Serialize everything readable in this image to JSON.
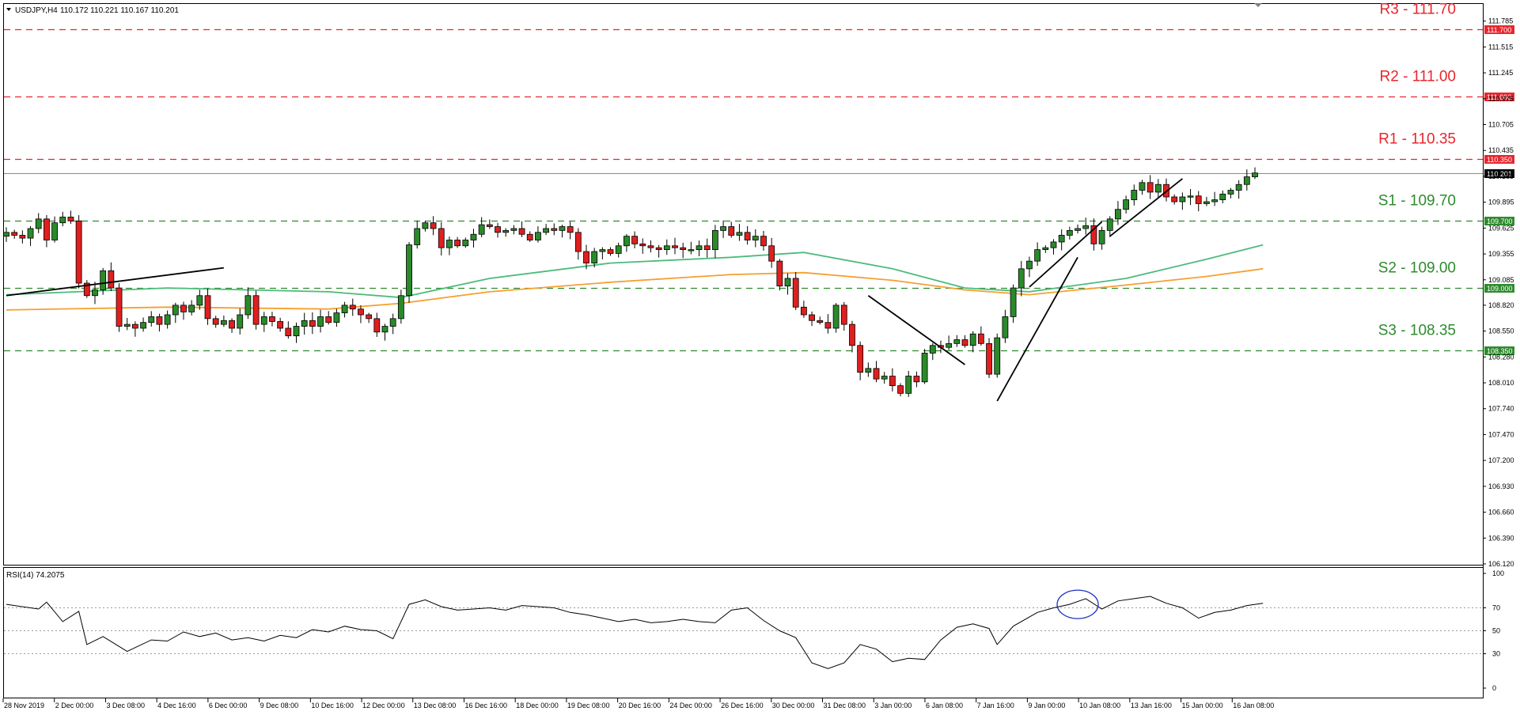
{
  "header": {
    "symbol": "USDJPY,H4",
    "ohlc": "110.172 110.221 110.167 110.201"
  },
  "rsi_header": {
    "label": "RSI(14) 74.2075"
  },
  "colors": {
    "resistance": "#e8262d",
    "support": "#2e8b2e",
    "bull": "#2a8a2a",
    "bear": "#e01f1f",
    "ma_fast": "#4cbb7c",
    "ma_slow": "#f5a030",
    "rsi_circle": "#2030c0"
  },
  "chart_data": [
    {
      "type": "candlestick",
      "symbol": "USDJPY",
      "timeframe": "H4",
      "ylim": [
        106.12,
        111.84
      ],
      "yticks": [
        "111.785",
        "111.515",
        "111.245",
        "110.975",
        "110.705",
        "110.435",
        "110.165",
        "109.895",
        "109.625",
        "109.355",
        "109.085",
        "108.820",
        "108.550",
        "108.280",
        "108.010",
        "107.740",
        "107.470",
        "107.200",
        "106.930",
        "106.660",
        "106.390",
        "106.120"
      ],
      "xticks": [
        "28 Nov 2019",
        "2 Dec 00:00",
        "3 Dec 08:00",
        "4 Dec 16:00",
        "6 Dec 00:00",
        "9 Dec 08:00",
        "10 Dec 16:00",
        "12 Dec 00:00",
        "13 Dec 08:00",
        "16 Dec 16:00",
        "18 Dec 00:00",
        "19 Dec 08:00",
        "20 Dec 16:00",
        "24 Dec 00:00",
        "26 Dec 16:00",
        "30 Dec 00:00",
        "31 Dec 08:00",
        "3 Jan 00:00",
        "6 Jan 08:00",
        "7 Jan 16:00",
        "9 Jan 00:00",
        "10 Jan 08:00",
        "13 Jan 16:00",
        "15 Jan 00:00",
        "16 Jan 08:00"
      ],
      "levels": [
        {
          "name": "R3",
          "label": "R3 - 111.70",
          "tag": "111.700",
          "value": 111.7,
          "kind": "resistance"
        },
        {
          "name": "R2",
          "label": "R2 - 111.00",
          "tag": "111.000",
          "value": 111.0,
          "kind": "resistance"
        },
        {
          "name": "R1",
          "label": "R1 - 110.35",
          "tag": "110.350",
          "value": 110.35,
          "kind": "resistance"
        },
        {
          "name": "S1",
          "label": "S1 - 109.70",
          "tag": "109.700",
          "value": 109.7,
          "kind": "support"
        },
        {
          "name": "S2",
          "label": "S2 - 109.00",
          "tag": "109.000",
          "value": 109.0,
          "kind": "support"
        },
        {
          "name": "S3",
          "label": "S3 - 108.35",
          "tag": "108.350",
          "value": 108.35,
          "kind": "support"
        }
      ],
      "last_price": {
        "tag": "110.201",
        "value": 110.201
      },
      "closes": [
        109.58,
        109.55,
        109.52,
        109.62,
        109.72,
        109.5,
        109.68,
        109.74,
        109.7,
        109.05,
        108.92,
        108.98,
        109.18,
        109.0,
        108.6,
        108.62,
        108.58,
        108.64,
        108.7,
        108.62,
        108.72,
        108.82,
        108.75,
        108.82,
        108.92,
        108.68,
        108.62,
        108.66,
        108.58,
        108.72,
        108.92,
        108.62,
        108.7,
        108.65,
        108.58,
        108.5,
        108.6,
        108.66,
        108.6,
        108.7,
        108.64,
        108.74,
        108.82,
        108.78,
        108.72,
        108.68,
        108.54,
        108.6,
        108.68,
        108.92,
        109.45,
        109.62,
        109.68,
        109.62,
        109.42,
        109.5,
        109.44,
        109.5,
        109.56,
        109.66,
        109.64,
        109.58,
        109.6,
        109.62,
        109.56,
        109.5,
        109.58,
        109.62,
        109.6,
        109.64,
        109.58,
        109.38,
        109.26,
        109.38,
        109.4,
        109.36,
        109.44,
        109.54,
        109.46,
        109.44,
        109.42,
        109.4,
        109.44,
        109.42,
        109.4,
        109.4,
        109.44,
        109.4,
        109.6,
        109.64,
        109.55,
        109.58,
        109.5,
        109.54,
        109.44,
        109.28,
        109.02,
        109.1,
        108.8,
        108.72,
        108.66,
        108.64,
        108.58,
        108.82,
        108.62,
        108.4,
        108.12,
        108.16,
        108.05,
        108.08,
        107.98,
        107.9,
        108.08,
        108.02,
        108.32,
        108.4,
        108.38,
        108.42,
        108.46,
        108.4,
        108.52,
        108.42,
        108.1,
        108.48,
        108.7,
        109.0,
        109.2,
        109.28,
        109.4,
        109.42,
        109.48,
        109.55,
        109.6,
        109.62,
        109.65,
        109.46,
        109.6,
        109.72,
        109.82,
        109.92,
        110.02,
        110.1,
        110.0,
        110.08,
        109.95,
        109.9,
        109.95,
        109.96,
        109.88,
        109.9,
        109.92,
        109.98,
        110.02,
        110.08,
        110.16,
        110.2
      ],
      "moving_averages": [
        {
          "role": "fast",
          "points": [
            [
              0,
              108.93
            ],
            [
              20,
              109.0
            ],
            [
              40,
              108.96
            ],
            [
              49,
              108.9
            ],
            [
              60,
              109.1
            ],
            [
              75,
              109.26
            ],
            [
              90,
              109.32
            ],
            [
              99,
              109.37
            ],
            [
              110,
              109.2
            ],
            [
              119,
              109.0
            ],
            [
              127,
              108.96
            ],
            [
              139,
              109.1
            ],
            [
              149,
              109.3
            ],
            [
              156,
              109.45
            ]
          ]
        },
        {
          "role": "slow",
          "points": [
            [
              0,
              108.77
            ],
            [
              20,
              108.8
            ],
            [
              40,
              108.78
            ],
            [
              49,
              108.84
            ],
            [
              60,
              108.96
            ],
            [
              75,
              109.06
            ],
            [
              90,
              109.14
            ],
            [
              99,
              109.16
            ],
            [
              110,
              109.08
            ],
            [
              119,
              108.98
            ],
            [
              127,
              108.93
            ],
            [
              139,
              109.03
            ],
            [
              149,
              109.12
            ],
            [
              156,
              109.2
            ]
          ]
        }
      ],
      "trendlines": [
        [
          [
            0,
            108.92
          ],
          [
            27,
            109.21
          ]
        ],
        [
          [
            107,
            108.92
          ],
          [
            119,
            108.2
          ]
        ],
        [
          [
            123,
            107.82
          ],
          [
            133,
            109.32
          ]
        ],
        [
          [
            127,
            109.01
          ],
          [
            136,
            109.69
          ]
        ],
        [
          [
            137,
            109.54
          ],
          [
            146,
            110.14
          ]
        ]
      ]
    },
    {
      "type": "line",
      "indicator": "RSI(14)",
      "ylim": [
        0,
        100
      ],
      "yticks": [
        "100",
        "70",
        "50",
        "30",
        "0"
      ],
      "guide_levels": [
        70,
        50,
        30
      ],
      "points": [
        [
          0,
          73
        ],
        [
          4,
          69
        ],
        [
          5,
          75
        ],
        [
          7,
          58
        ],
        [
          9,
          67
        ],
        [
          10,
          38
        ],
        [
          12,
          45
        ],
        [
          15,
          32
        ],
        [
          18,
          42
        ],
        [
          20,
          41
        ],
        [
          22,
          49
        ],
        [
          24,
          45
        ],
        [
          26,
          48
        ],
        [
          28,
          42
        ],
        [
          30,
          44
        ],
        [
          32,
          41
        ],
        [
          34,
          46
        ],
        [
          36,
          44
        ],
        [
          38,
          51
        ],
        [
          40,
          49
        ],
        [
          42,
          54
        ],
        [
          44,
          51
        ],
        [
          46,
          50
        ],
        [
          48,
          43
        ],
        [
          50,
          73
        ],
        [
          52,
          77
        ],
        [
          54,
          71
        ],
        [
          56,
          68
        ],
        [
          58,
          69
        ],
        [
          60,
          70
        ],
        [
          62,
          68
        ],
        [
          64,
          72
        ],
        [
          66,
          71
        ],
        [
          68,
          70
        ],
        [
          70,
          66
        ],
        [
          72,
          64
        ],
        [
          74,
          61
        ],
        [
          76,
          58
        ],
        [
          78,
          60
        ],
        [
          80,
          57
        ],
        [
          82,
          58
        ],
        [
          84,
          60
        ],
        [
          86,
          58
        ],
        [
          88,
          57
        ],
        [
          90,
          68
        ],
        [
          92,
          70
        ],
        [
          94,
          59
        ],
        [
          96,
          50
        ],
        [
          98,
          44
        ],
        [
          100,
          22
        ],
        [
          102,
          17
        ],
        [
          104,
          22
        ],
        [
          106,
          38
        ],
        [
          108,
          34
        ],
        [
          110,
          23
        ],
        [
          112,
          26
        ],
        [
          114,
          25
        ],
        [
          116,
          42
        ],
        [
          118,
          53
        ],
        [
          120,
          56
        ],
        [
          122,
          52
        ],
        [
          123,
          38
        ],
        [
          125,
          54
        ],
        [
          128,
          66
        ],
        [
          130,
          70
        ],
        [
          132,
          73
        ],
        [
          134,
          78
        ],
        [
          136,
          69
        ],
        [
          138,
          76
        ],
        [
          140,
          78
        ],
        [
          142,
          80
        ],
        [
          144,
          74
        ],
        [
          146,
          70
        ],
        [
          148,
          61
        ],
        [
          150,
          66
        ],
        [
          152,
          68
        ],
        [
          154,
          72
        ],
        [
          156,
          74
        ]
      ],
      "circle_at": {
        "x": 133,
        "value": 73
      }
    }
  ]
}
